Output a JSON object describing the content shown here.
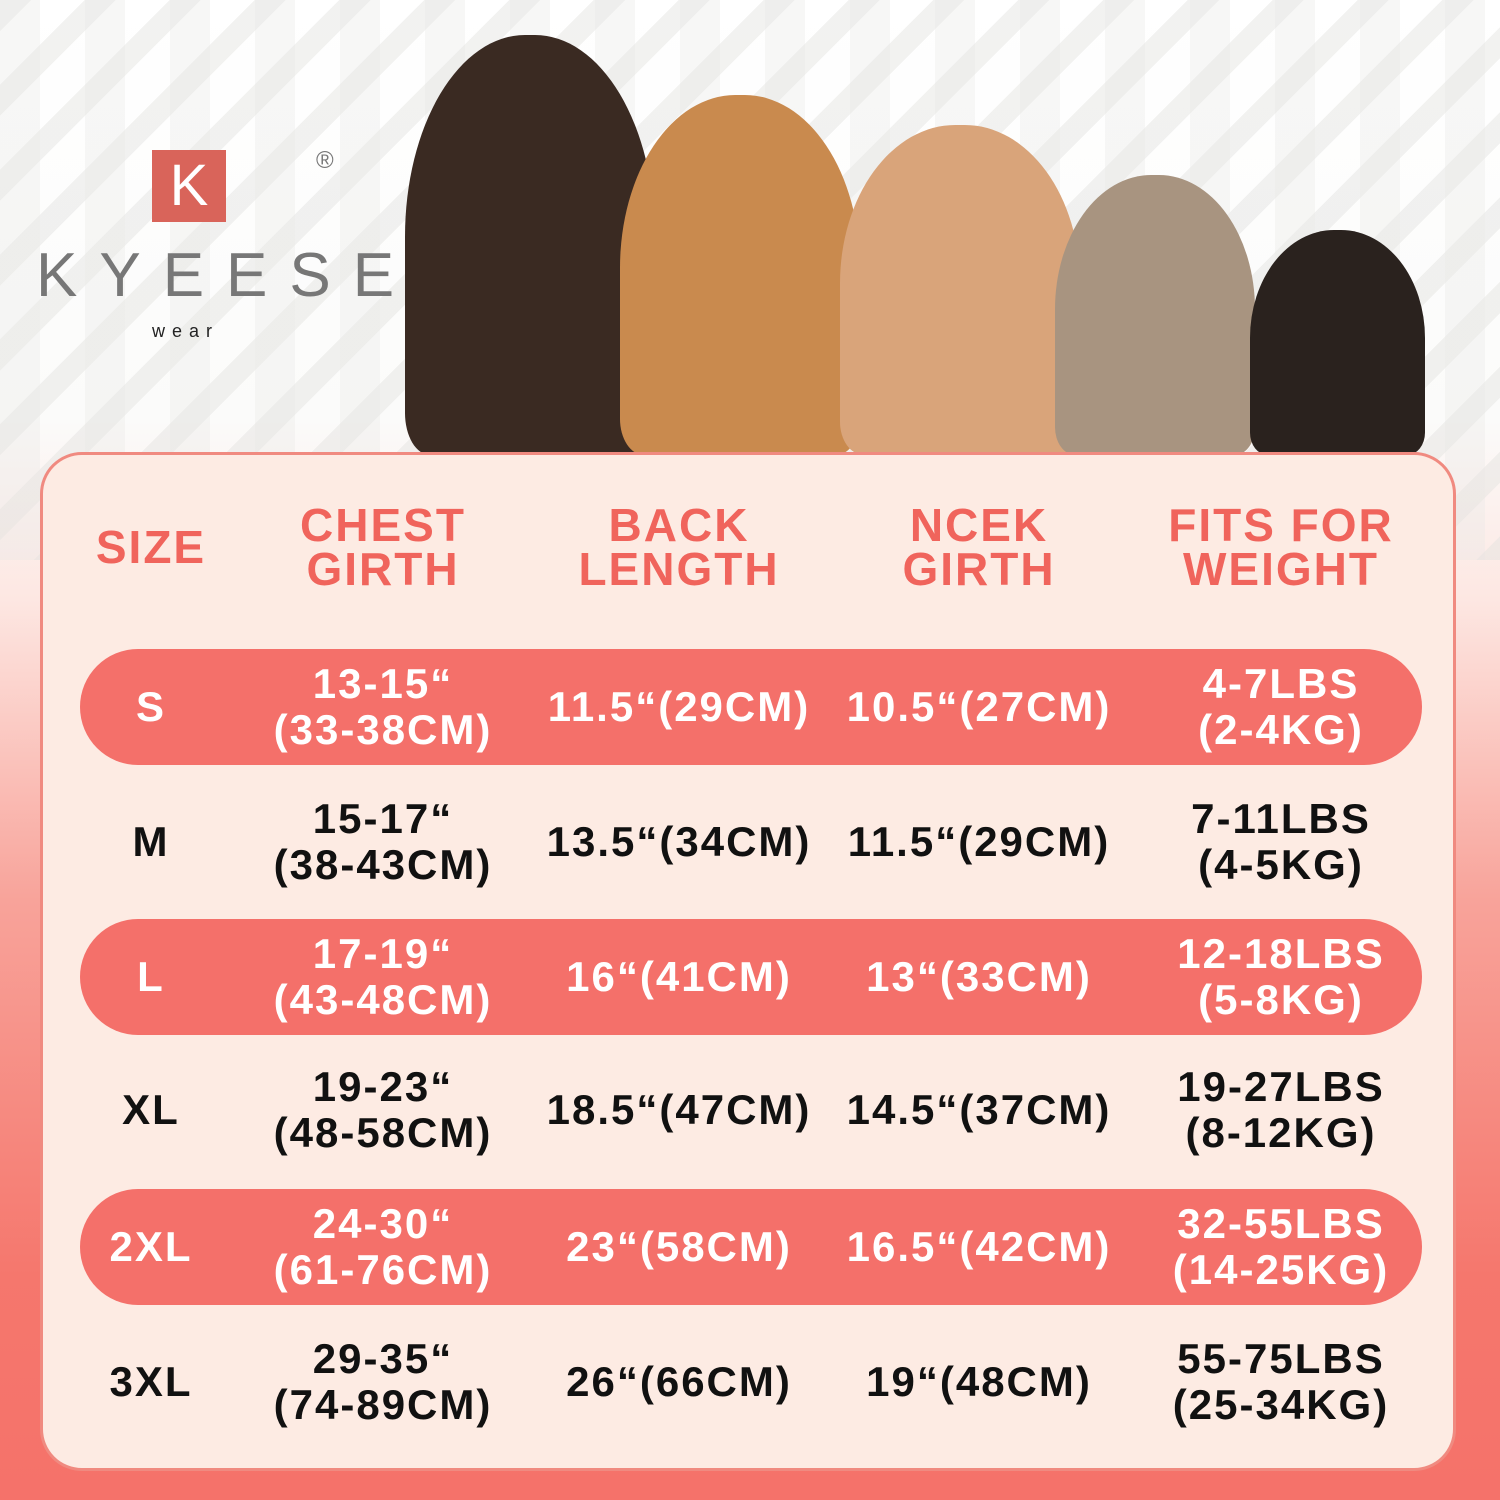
{
  "brand": {
    "logo_letter": "K",
    "name": "KYEESE",
    "sub": "wear",
    "registered": "®",
    "accent": "#d9645a"
  },
  "colors": {
    "header_text": "#f0645c",
    "pill_row": "#f4706a",
    "card_bg": "#fdebe3"
  },
  "image": {
    "subject": "five dogs of decreasing size"
  },
  "table": {
    "headers": [
      [
        "SIZE"
      ],
      [
        "CHEST",
        "GIRTH"
      ],
      [
        "BACK",
        "LENGTH"
      ],
      [
        "NCEK",
        "GIRTH"
      ],
      [
        "FITS FOR",
        "WEIGHT"
      ]
    ],
    "rows": [
      {
        "size": "S",
        "chest": [
          "13-15“",
          "(33-38CM)"
        ],
        "back": "11.5“(29CM)",
        "neck": "10.5“(27CM)",
        "weight": [
          "4-7LBS",
          "(2-4KG)"
        ]
      },
      {
        "size": "M",
        "chest": [
          "15-17“",
          "(38-43CM)"
        ],
        "back": "13.5“(34CM)",
        "neck": "11.5“(29CM)",
        "weight": [
          "7-11LBS",
          "(4-5KG)"
        ]
      },
      {
        "size": "L",
        "chest": [
          "17-19“",
          "(43-48CM)"
        ],
        "back": "16“(41CM)",
        "neck": "13“(33CM)",
        "weight": [
          "12-18LBS",
          "(5-8KG)"
        ]
      },
      {
        "size": "XL",
        "chest": [
          "19-23“",
          "(48-58CM)"
        ],
        "back": "18.5“(47CM)",
        "neck": "14.5“(37CM)",
        "weight": [
          "19-27LBS",
          "(8-12KG)"
        ]
      },
      {
        "size": "2XL",
        "chest": [
          "24-30“",
          "(61-76CM)"
        ],
        "back": "23“(58CM)",
        "neck": "16.5“(42CM)",
        "weight": [
          "32-55LBS",
          "(14-25KG)"
        ]
      },
      {
        "size": "3XL",
        "chest": [
          "29-35“",
          "(74-89CM)"
        ],
        "back": "26“(66CM)",
        "neck": "19“(48CM)",
        "weight": [
          "55-75LBS",
          "(25-34KG)"
        ]
      }
    ]
  }
}
